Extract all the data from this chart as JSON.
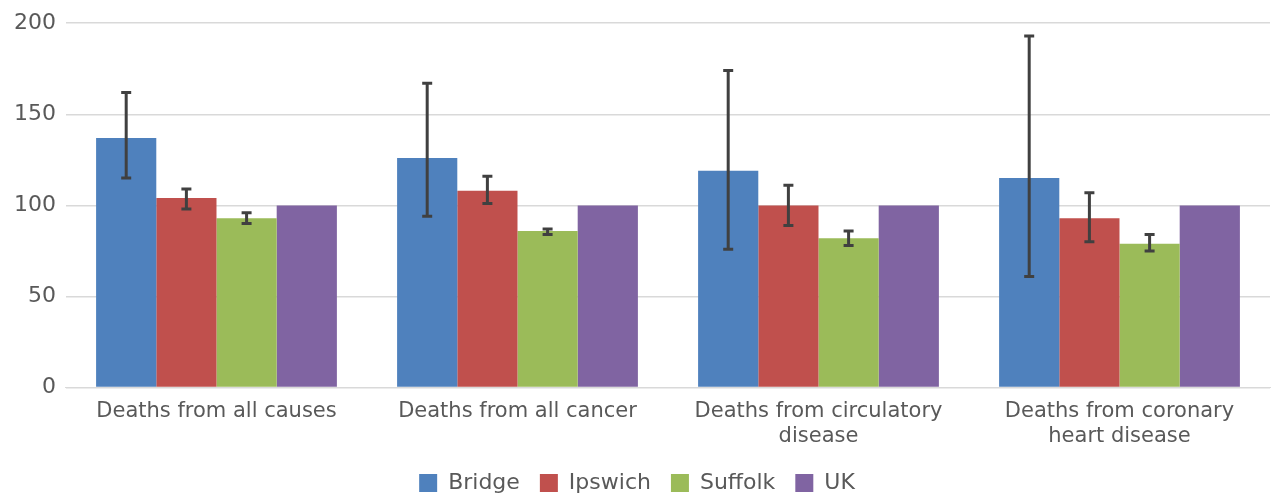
{
  "chart_data": {
    "type": "bar",
    "categories": [
      "Deaths from all causes",
      "Deaths from all cancer",
      "Deaths from circulatory disease",
      "Deaths from coronary heart disease"
    ],
    "series": [
      {
        "name": "Bridge",
        "color": "#4f81bd",
        "values": [
          137,
          126,
          119,
          115
        ],
        "errors": [
          [
            115,
            162
          ],
          [
            94,
            167
          ],
          [
            76,
            174
          ],
          [
            61,
            193
          ]
        ]
      },
      {
        "name": "Ipswich",
        "color": "#c0504d",
        "values": [
          104,
          108,
          100,
          93
        ],
        "errors": [
          [
            98,
            109
          ],
          [
            101,
            116
          ],
          [
            89,
            111
          ],
          [
            80,
            107
          ]
        ]
      },
      {
        "name": "Suffolk",
        "color": "#9bbb59",
        "values": [
          93,
          86,
          82,
          79
        ],
        "errors": [
          [
            90,
            96
          ],
          [
            84,
            87
          ],
          [
            78,
            86
          ],
          [
            75,
            84
          ]
        ]
      },
      {
        "name": "UK",
        "color": "#8064a2",
        "values": [
          100,
          100,
          100,
          100
        ]
      }
    ],
    "ylim": [
      0,
      200
    ],
    "yticks": [
      0,
      50,
      100,
      150,
      200
    ],
    "grid": "y",
    "legend": "bottom"
  }
}
